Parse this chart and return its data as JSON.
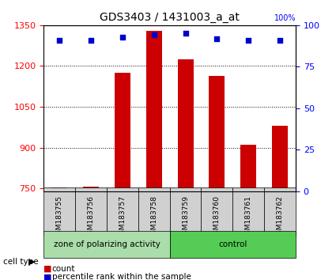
{
  "title": "GDS3403 / 1431003_a_at",
  "categories": [
    "GSM183755",
    "GSM183756",
    "GSM183757",
    "GSM183758",
    "GSM183759",
    "GSM183760",
    "GSM183761",
    "GSM183762"
  ],
  "count_values": [
    755,
    758,
    1175,
    1330,
    1225,
    1165,
    910,
    980
  ],
  "percentile_values": [
    91,
    91,
    93,
    94,
    95,
    92,
    91,
    91
  ],
  "ylim_left": [
    740,
    1350
  ],
  "ylim_right": [
    0,
    100
  ],
  "yticks_left": [
    750,
    900,
    1050,
    1200,
    1350
  ],
  "yticks_right": [
    0,
    25,
    50,
    75,
    100
  ],
  "bar_color": "#cc0000",
  "dot_color": "#0000cc",
  "grid_color": "#000000",
  "cell_type_groups": [
    {
      "label": "zone of polarizing activity",
      "indices": [
        0,
        1,
        2,
        3
      ],
      "color": "#aaddaa"
    },
    {
      "label": "control",
      "indices": [
        4,
        5,
        6,
        7
      ],
      "color": "#55cc55"
    }
  ],
  "cell_type_label": "cell type",
  "legend_count_label": "count",
  "legend_percentile_label": "percentile rank within the sample",
  "background_color": "#ffffff",
  "plot_bg_color": "#ffffff"
}
